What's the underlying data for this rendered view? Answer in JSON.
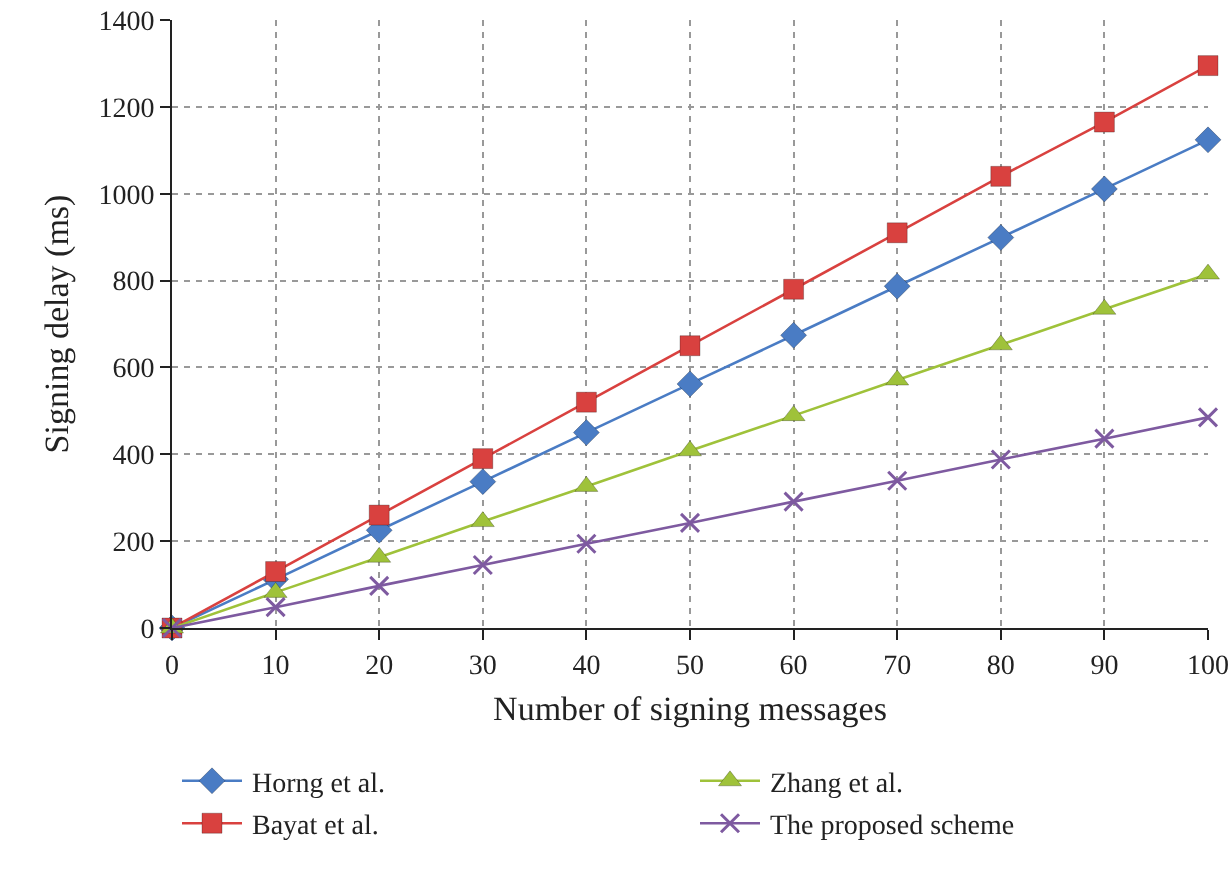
{
  "chart_data": {
    "type": "line",
    "xlabel": "Number of signing messages",
    "ylabel": "Signing delay (ms)",
    "x": [
      0,
      10,
      20,
      30,
      40,
      50,
      60,
      70,
      80,
      90,
      100
    ],
    "series": [
      {
        "name": "Horng et al.",
        "color": "#4a7cc4",
        "marker": "diamond",
        "values": [
          0,
          112,
          225,
          337,
          450,
          562,
          674,
          787,
          899,
          1011,
          1124
        ]
      },
      {
        "name": "Bayat et al.",
        "color": "#d9413f",
        "marker": "square",
        "values": [
          0,
          130,
          260,
          390,
          520,
          650,
          780,
          910,
          1040,
          1165,
          1295
        ]
      },
      {
        "name": "Zhang et al.",
        "color": "#9fc23a",
        "marker": "triangle",
        "values": [
          0,
          82,
          163,
          245,
          326,
          408,
          489,
          571,
          652,
          734,
          815
        ]
      },
      {
        "name": "The proposed scheme",
        "color": "#7e5aa0",
        "marker": "cross",
        "values": [
          0,
          48,
          97,
          145,
          194,
          242,
          291,
          339,
          388,
          436,
          485
        ]
      }
    ],
    "xlim": [
      0,
      100
    ],
    "xticks": [
      0,
      10,
      20,
      30,
      40,
      50,
      60,
      70,
      80,
      90,
      100
    ],
    "ylim": [
      0,
      1400
    ],
    "yticks": [
      0,
      200,
      400,
      600,
      800,
      1000,
      1200,
      1400
    ],
    "grid": true,
    "legend": "bottom",
    "line_style": "solid"
  }
}
